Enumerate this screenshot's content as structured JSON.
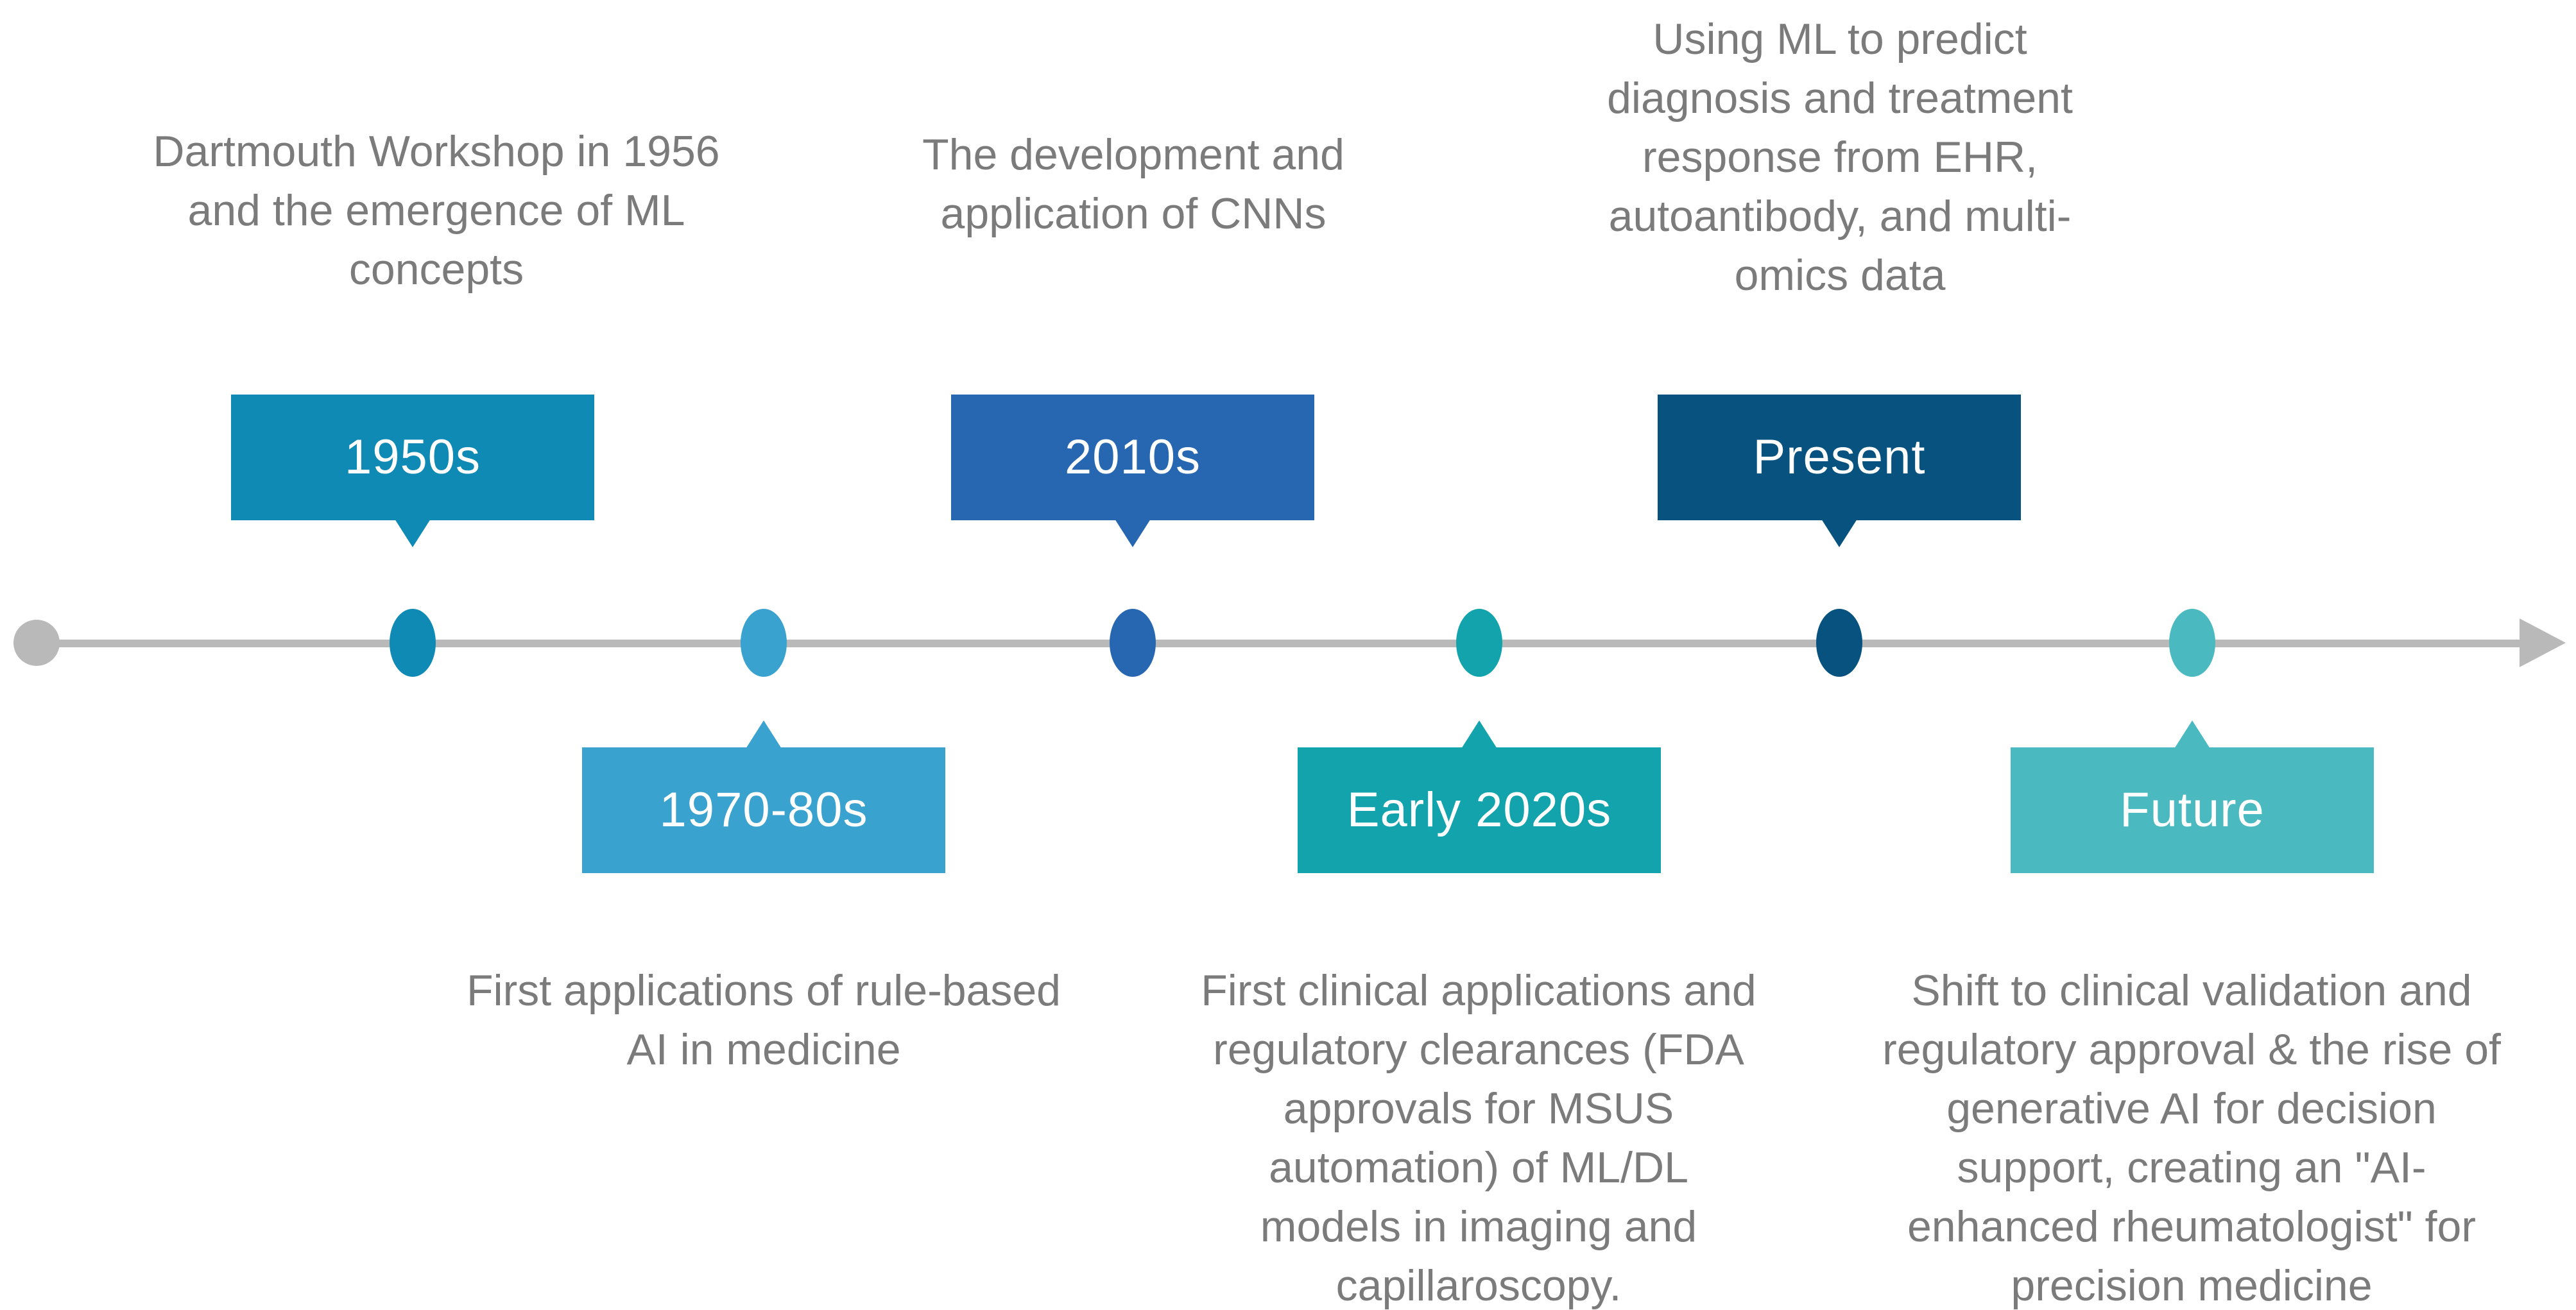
{
  "timeline": {
    "background": "#ffffff",
    "line_color": "#b9b9b9",
    "text_color": "#7b7b7b",
    "label_text_color": "#ffffff",
    "events": [
      {
        "label": "1950s",
        "side": "top",
        "color": "#0f8ab5",
        "description": "Dartmouth Workshop in 1956\nand the emergence of ML\nconcepts"
      },
      {
        "label": "1970-80s",
        "side": "bottom",
        "color": "#3aa2cf",
        "description": "First applications of rule-based\nAI in medicine"
      },
      {
        "label": "2010s",
        "side": "top",
        "color": "#2767b2",
        "description": "The development and\napplication of CNNs"
      },
      {
        "label": "Early 2020s",
        "side": "bottom",
        "color": "#13a3ac",
        "description": "First clinical applications and\nregulatory clearances (FDA\napprovals for MSUS\nautomation) of ML/DL\nmodels in imaging and\ncapillaroscopy."
      },
      {
        "label": "Present",
        "side": "top",
        "color": "#07527f",
        "description": "Using ML to predict\ndiagnosis and treatment\nresponse from EHR,\nautoantibody, and multi-\nomics data"
      },
      {
        "label": "Future",
        "side": "bottom",
        "color": "#4ab9c0",
        "description": "Shift to clinical validation and\nregulatory approval & the rise of\ngenerative AI for decision\nsupport, creating an \"AI-\nenhanced rheumatologist\" for\nprecision medicine"
      }
    ]
  }
}
